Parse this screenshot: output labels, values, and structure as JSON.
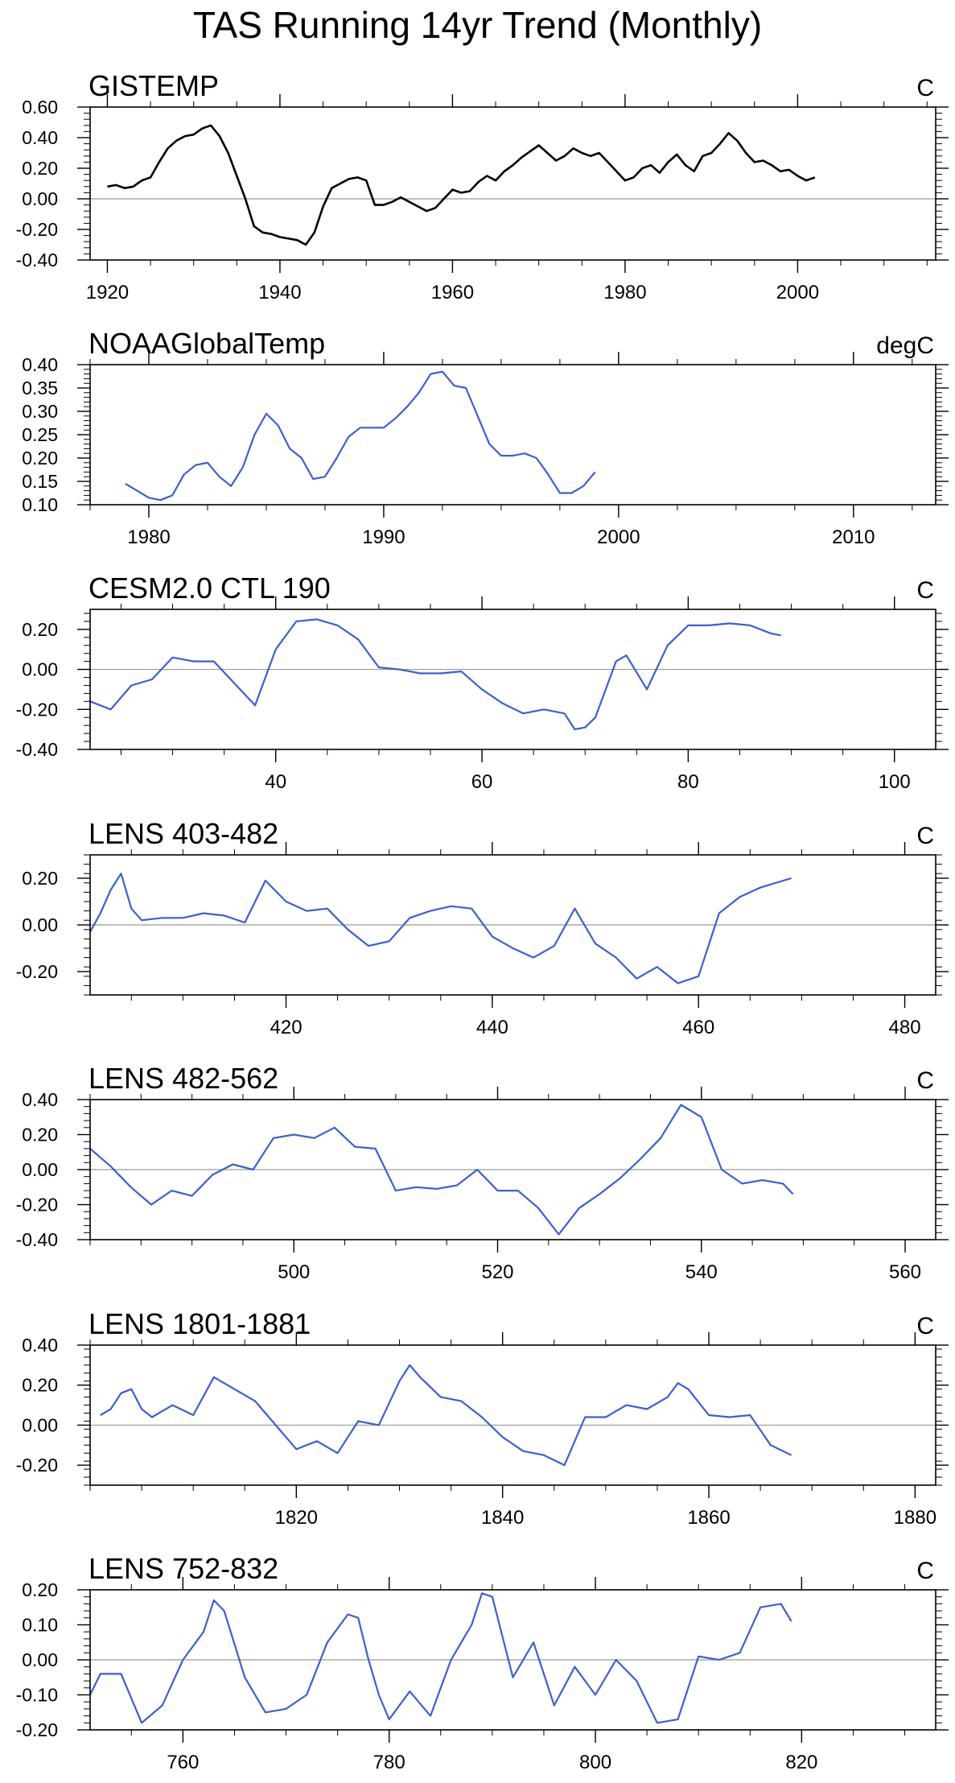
{
  "figure_title": "TAS Running 14yr Trend (Monthly)",
  "colors": {
    "black_series": "#000000",
    "blue_series": "#3a5fd6",
    "zero_line": "#9a9a9a",
    "frame": "#000000"
  },
  "chart_data": [
    {
      "type": "line",
      "title": "GISTEMP",
      "units": "C",
      "xlim": [
        1918,
        2016
      ],
      "ylim": [
        -0.4,
        0.6
      ],
      "xticks": [
        1920,
        1940,
        1960,
        1980,
        2000
      ],
      "xtick_labels": [
        "1920",
        "1940",
        "1960",
        "1980",
        "2000"
      ],
      "yticks": [
        -0.4,
        -0.2,
        0.0,
        0.2,
        0.4,
        0.6
      ],
      "ytick_labels": [
        "-0.40",
        "-0.20",
        "0.00",
        "0.20",
        "0.40",
        "0.60"
      ],
      "zero_line": true,
      "series_color": "#000000",
      "x": [
        1920,
        1921,
        1922,
        1923,
        1924,
        1925,
        1926,
        1927,
        1928,
        1929,
        1930,
        1931,
        1932,
        1933,
        1934,
        1935,
        1936,
        1937,
        1938,
        1939,
        1940,
        1941,
        1942,
        1943,
        1944,
        1945,
        1946,
        1947,
        1948,
        1949,
        1950,
        1951,
        1952,
        1953,
        1954,
        1955,
        1956,
        1957,
        1958,
        1959,
        1960,
        1961,
        1962,
        1963,
        1964,
        1965,
        1966,
        1967,
        1968,
        1969,
        1970,
        1971,
        1972,
        1973,
        1974,
        1975,
        1976,
        1977,
        1978,
        1979,
        1980,
        1981,
        1982,
        1983,
        1984,
        1985,
        1986,
        1987,
        1988,
        1989,
        1990,
        1991,
        1992,
        1993,
        1994,
        1995,
        1996,
        1997,
        1998,
        1999,
        2000,
        2001,
        2002
      ],
      "values": [
        0.08,
        0.09,
        0.07,
        0.08,
        0.12,
        0.14,
        0.24,
        0.33,
        0.38,
        0.41,
        0.42,
        0.46,
        0.48,
        0.41,
        0.3,
        0.15,
        0.0,
        -0.18,
        -0.22,
        -0.23,
        -0.25,
        -0.26,
        -0.27,
        -0.3,
        -0.22,
        -0.05,
        0.07,
        0.1,
        0.13,
        0.14,
        0.12,
        -0.04,
        -0.04,
        -0.02,
        0.01,
        -0.02,
        -0.05,
        -0.08,
        -0.06,
        0.0,
        0.06,
        0.04,
        0.05,
        0.11,
        0.15,
        0.12,
        0.18,
        0.22,
        0.27,
        0.31,
        0.35,
        0.3,
        0.25,
        0.28,
        0.33,
        0.3,
        0.28,
        0.3,
        0.24,
        0.18,
        0.12,
        0.14,
        0.2,
        0.22,
        0.17,
        0.24,
        0.29,
        0.22,
        0.18,
        0.28,
        0.3,
        0.36,
        0.43,
        0.38,
        0.3,
        0.24,
        0.25,
        0.22,
        0.18,
        0.19,
        0.15,
        0.12,
        0.14
      ]
    },
    {
      "type": "line",
      "title": "NOAAGlobalTemp",
      "units": "degC",
      "xlim": [
        1977.5,
        2013.5
      ],
      "ylim": [
        0.1,
        0.4
      ],
      "xticks": [
        1980,
        1990,
        2000,
        2010
      ],
      "xtick_labels": [
        "1980",
        "1990",
        "2000",
        "2010"
      ],
      "yticks": [
        0.1,
        0.15,
        0.2,
        0.25,
        0.3,
        0.35,
        0.4
      ],
      "ytick_labels": [
        "0.10",
        "0.15",
        "0.20",
        "0.25",
        "0.30",
        "0.35",
        "0.40"
      ],
      "zero_line": false,
      "series_color": "#3a5fd6",
      "x": [
        1979,
        1979.5,
        1980,
        1980.5,
        1981,
        1981.5,
        1982,
        1982.5,
        1983,
        1983.5,
        1984,
        1984.5,
        1985,
        1985.5,
        1986,
        1986.5,
        1987,
        1987.5,
        1988,
        1988.5,
        1989,
        1989.5,
        1990,
        1990.5,
        1991,
        1991.5,
        1992,
        1992.5,
        1993,
        1993.5,
        1994,
        1994.5,
        1995,
        1995.5,
        1996,
        1996.5,
        1997,
        1997.5,
        1998,
        1998.5,
        1999
      ],
      "values": [
        0.145,
        0.13,
        0.115,
        0.11,
        0.12,
        0.165,
        0.185,
        0.19,
        0.16,
        0.14,
        0.18,
        0.25,
        0.295,
        0.27,
        0.22,
        0.2,
        0.155,
        0.16,
        0.2,
        0.245,
        0.265,
        0.265,
        0.265,
        0.285,
        0.31,
        0.34,
        0.38,
        0.385,
        0.355,
        0.35,
        0.29,
        0.23,
        0.205,
        0.205,
        0.21,
        0.2,
        0.165,
        0.125,
        0.125,
        0.14,
        0.17
      ]
    },
    {
      "type": "line",
      "title": "CESM2.0 CTL 190",
      "units": "C",
      "xlim": [
        22,
        104
      ],
      "ylim": [
        -0.4,
        0.3
      ],
      "xticks": [
        40,
        60,
        80,
        100
      ],
      "xtick_labels": [
        "40",
        "60",
        "80",
        "100"
      ],
      "yticks": [
        -0.4,
        -0.2,
        0.0,
        0.2
      ],
      "ytick_labels": [
        "-0.40",
        "-0.20",
        "0.00",
        "0.20"
      ],
      "zero_line": true,
      "series_color": "#3a5fd6",
      "x": [
        22,
        24,
        26,
        28,
        30,
        32,
        34,
        36,
        38,
        40,
        42,
        44,
        46,
        48,
        50,
        52,
        54,
        56,
        58,
        60,
        62,
        64,
        66,
        68,
        69,
        70,
        71,
        72,
        73,
        74,
        76,
        78,
        80,
        82,
        84,
        86,
        88,
        89
      ],
      "values": [
        -0.16,
        -0.2,
        -0.08,
        -0.05,
        0.06,
        0.04,
        0.04,
        -0.07,
        -0.18,
        0.1,
        0.24,
        0.25,
        0.22,
        0.15,
        0.01,
        0.0,
        -0.02,
        -0.02,
        -0.01,
        -0.1,
        -0.17,
        -0.22,
        -0.2,
        -0.22,
        -0.3,
        -0.29,
        -0.24,
        -0.1,
        0.04,
        0.07,
        -0.1,
        0.12,
        0.22,
        0.22,
        0.23,
        0.22,
        0.18,
        0.17
      ]
    },
    {
      "type": "line",
      "title": "LENS 403-482",
      "units": "C",
      "xlim": [
        401,
        483
      ],
      "ylim": [
        -0.3,
        0.3
      ],
      "xticks": [
        420,
        440,
        460,
        480
      ],
      "xtick_labels": [
        "420",
        "440",
        "460",
        "480"
      ],
      "yticks": [
        -0.2,
        0.0,
        0.2
      ],
      "ytick_labels": [
        "-0.20",
        "0.00",
        "0.20"
      ],
      "zero_line": true,
      "series_color": "#3a5fd6",
      "x": [
        401,
        402,
        403,
        404,
        405,
        406,
        408,
        410,
        412,
        414,
        416,
        418,
        420,
        422,
        424,
        426,
        428,
        430,
        432,
        434,
        436,
        438,
        440,
        442,
        444,
        446,
        448,
        450,
        452,
        454,
        456,
        458,
        460,
        462,
        464,
        466,
        469
      ],
      "values": [
        -0.03,
        0.05,
        0.15,
        0.22,
        0.07,
        0.02,
        0.03,
        0.03,
        0.05,
        0.04,
        0.01,
        0.19,
        0.1,
        0.06,
        0.07,
        -0.02,
        -0.09,
        -0.07,
        0.03,
        0.06,
        0.08,
        0.07,
        -0.05,
        -0.1,
        -0.14,
        -0.09,
        0.07,
        -0.08,
        -0.14,
        -0.23,
        -0.18,
        -0.25,
        -0.22,
        0.05,
        0.12,
        0.16,
        0.2
      ]
    },
    {
      "type": "line",
      "title": "LENS 482-562",
      "units": "C",
      "xlim": [
        480,
        563
      ],
      "ylim": [
        -0.4,
        0.4
      ],
      "xticks": [
        500,
        520,
        540,
        560
      ],
      "xtick_labels": [
        "500",
        "520",
        "540",
        "560"
      ],
      "yticks": [
        -0.4,
        -0.2,
        0.0,
        0.2,
        0.4
      ],
      "ytick_labels": [
        "-0.40",
        "-0.20",
        "0.00",
        "0.20",
        "0.40"
      ],
      "zero_line": true,
      "series_color": "#3a5fd6",
      "x": [
        480,
        482,
        484,
        486,
        488,
        490,
        492,
        494,
        496,
        498,
        500,
        502,
        504,
        506,
        508,
        510,
        512,
        514,
        516,
        518,
        520,
        522,
        524,
        526,
        528,
        530,
        532,
        534,
        536,
        538,
        540,
        542,
        544,
        546,
        548,
        549
      ],
      "values": [
        0.12,
        0.02,
        -0.1,
        -0.2,
        -0.12,
        -0.15,
        -0.03,
        0.03,
        0.0,
        0.18,
        0.2,
        0.18,
        0.24,
        0.13,
        0.12,
        -0.12,
        -0.1,
        -0.11,
        -0.09,
        0.0,
        -0.12,
        -0.12,
        -0.22,
        -0.37,
        -0.22,
        -0.14,
        -0.05,
        0.06,
        0.18,
        0.37,
        0.3,
        0.0,
        -0.08,
        -0.06,
        -0.08,
        -0.14
      ]
    },
    {
      "type": "line",
      "title": "LENS 1801-1881",
      "units": "C",
      "xlim": [
        1800,
        1882
      ],
      "ylim": [
        -0.3,
        0.4
      ],
      "xticks": [
        1820,
        1840,
        1860,
        1880
      ],
      "xtick_labels": [
        "1820",
        "1840",
        "1860",
        "1880"
      ],
      "yticks": [
        -0.2,
        0.0,
        0.2,
        0.4
      ],
      "ytick_labels": [
        "-0.20",
        "0.00",
        "0.20",
        "0.40"
      ],
      "zero_line": true,
      "series_color": "#3a5fd6",
      "x": [
        1801,
        1802,
        1803,
        1804,
        1805,
        1806,
        1808,
        1810,
        1812,
        1814,
        1816,
        1818,
        1820,
        1822,
        1824,
        1826,
        1828,
        1830,
        1831,
        1832,
        1834,
        1836,
        1838,
        1840,
        1842,
        1844,
        1846,
        1848,
        1850,
        1852,
        1854,
        1856,
        1857,
        1858,
        1860,
        1862,
        1864,
        1866,
        1868
      ],
      "values": [
        0.05,
        0.08,
        0.16,
        0.18,
        0.08,
        0.04,
        0.1,
        0.05,
        0.24,
        0.18,
        0.12,
        0.0,
        -0.12,
        -0.08,
        -0.14,
        0.02,
        0.0,
        0.22,
        0.3,
        0.24,
        0.14,
        0.12,
        0.04,
        -0.06,
        -0.13,
        -0.15,
        -0.2,
        0.04,
        0.04,
        0.1,
        0.08,
        0.14,
        0.21,
        0.18,
        0.05,
        0.04,
        0.05,
        -0.1,
        -0.15
      ]
    },
    {
      "type": "line",
      "title": "LENS 752-832",
      "units": "C",
      "xlim": [
        751,
        833
      ],
      "ylim": [
        -0.2,
        0.2
      ],
      "xticks": [
        760,
        780,
        800,
        820
      ],
      "xtick_labels": [
        "760",
        "780",
        "800",
        "820"
      ],
      "yticks": [
        -0.2,
        -0.1,
        0.0,
        0.1,
        0.2
      ],
      "ytick_labels": [
        "-0.20",
        "-0.10",
        "0.00",
        "0.10",
        "0.20"
      ],
      "zero_line": true,
      "series_color": "#3a5fd6",
      "x": [
        751,
        752,
        754,
        756,
        758,
        760,
        762,
        763,
        764,
        766,
        768,
        770,
        772,
        774,
        776,
        777,
        778,
        779,
        780,
        782,
        784,
        786,
        788,
        789,
        790,
        792,
        794,
        796,
        798,
        800,
        802,
        804,
        806,
        808,
        810,
        812,
        814,
        816,
        818,
        819
      ],
      "values": [
        -0.1,
        -0.04,
        -0.04,
        -0.18,
        -0.13,
        0.0,
        0.08,
        0.17,
        0.14,
        -0.05,
        -0.15,
        -0.14,
        -0.1,
        0.05,
        0.13,
        0.12,
        0.0,
        -0.1,
        -0.17,
        -0.09,
        -0.16,
        0.0,
        0.1,
        0.19,
        0.18,
        -0.05,
        0.05,
        -0.13,
        -0.02,
        -0.1,
        0.0,
        -0.06,
        -0.18,
        -0.17,
        0.01,
        0.0,
        0.02,
        0.15,
        0.16,
        0.11
      ]
    }
  ]
}
